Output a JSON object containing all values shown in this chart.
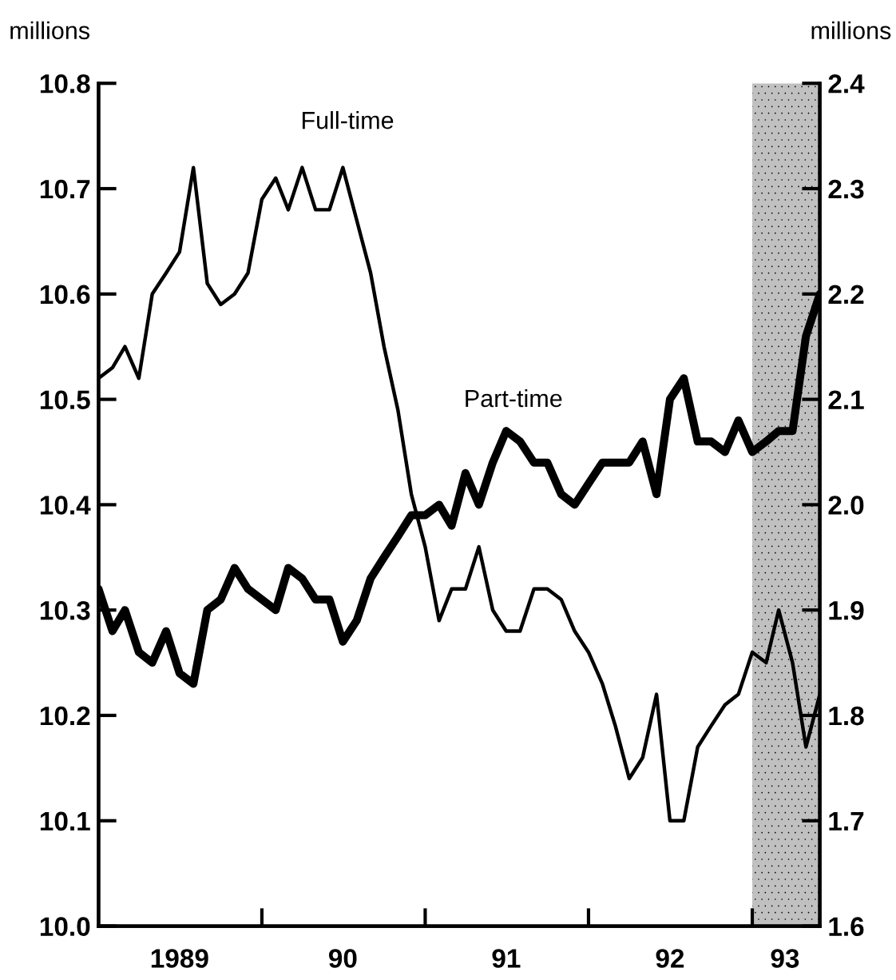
{
  "chart_data": {
    "type": "line",
    "ylabel": "millions",
    "y2label": "millions",
    "xlim": [
      "1989-01",
      "1993-06"
    ],
    "xticks": [
      {
        "value": "1990-01",
        "label": null
      },
      {
        "value": "1991-01",
        "label": null
      },
      {
        "value": "1992-01",
        "label": null
      },
      {
        "value": "1993-01",
        "label": null
      },
      {
        "value": "1989-07",
        "label": "1989"
      },
      {
        "value": "1990-07",
        "label": "90"
      },
      {
        "value": "1991-07",
        "label": "91"
      },
      {
        "value": "1992-07",
        "label": "92"
      },
      {
        "value": "1993-03-15",
        "label": "93"
      }
    ],
    "ylim": [
      10.0,
      10.8
    ],
    "yticks": [
      {
        "value": 10,
        "label": "10.0"
      },
      10.1,
      10.2,
      10.3,
      10.4,
      10.5,
      10.6,
      10.7,
      10.8
    ],
    "y2lim": [
      1.6,
      2.4
    ],
    "y2ticks": [
      1.6,
      1.7,
      1.8,
      1.9,
      {
        "value": 2,
        "label": "2.0"
      },
      2.1,
      2.2,
      2.3,
      2.4
    ],
    "grid": false,
    "legend": false,
    "marker": "none",
    "line_style": "solid",
    "bands": [
      {
        "axis": "x",
        "from": "1993-01",
        "to": "1993-06",
        "color": "#c0c0c0"
      }
    ],
    "annotations": [
      "Full-time",
      "Part-time"
    ],
    "x": [
      "1989-01",
      "1989-02",
      "1989-03",
      "1989-04",
      "1989-05",
      "1989-06",
      "1989-07",
      "1989-08",
      "1989-09",
      "1989-10",
      "1989-11",
      "1989-12",
      "1990-01",
      "1990-02",
      "1990-03",
      "1990-04",
      "1990-05",
      "1990-06",
      "1990-07",
      "1990-08",
      "1990-09",
      "1990-10",
      "1990-11",
      "1990-12",
      "1991-01",
      "1991-02",
      "1991-03",
      "1991-04",
      "1991-05",
      "1991-06",
      "1991-07",
      "1991-08",
      "1991-09",
      "1991-10",
      "1991-11",
      "1991-12",
      "1992-01",
      "1992-02",
      "1992-03",
      "1992-04",
      "1992-05",
      "1992-06",
      "1992-07",
      "1992-08",
      "1992-09",
      "1992-10",
      "1992-11",
      "1992-12",
      "1993-01",
      "1993-02",
      "1993-03",
      "1993-04",
      "1993-05",
      "1993-06"
    ],
    "series": [
      {
        "color": "#000000",
        "values": [
          10.52,
          10.53,
          10.55,
          10.52,
          10.6,
          10.62,
          10.64,
          10.72,
          10.61,
          10.59,
          10.6,
          10.62,
          10.69,
          10.71,
          10.68,
          10.72,
          10.68,
          10.68,
          10.72,
          10.67,
          10.62,
          10.55,
          10.49,
          10.41,
          10.36,
          10.29,
          10.32,
          10.32,
          10.36,
          10.3,
          10.28,
          10.28,
          10.32,
          10.32,
          10.31,
          10.28,
          10.26,
          10.23,
          10.19,
          10.14,
          10.16,
          10.22,
          10.1,
          10.1,
          10.17,
          10.19,
          10.21,
          10.22,
          10.26,
          10.25,
          10.3,
          10.25,
          10.17,
          10.22
        ]
      },
      {
        "color": "#000000",
        "axis": "y2",
        "values": [
          1.92,
          1.88,
          1.9,
          1.86,
          1.85,
          1.88,
          1.84,
          1.83,
          1.9,
          1.91,
          1.94,
          1.92,
          1.91,
          1.9,
          1.94,
          1.93,
          1.91,
          1.91,
          1.87,
          1.89,
          1.93,
          1.95,
          1.97,
          1.99,
          1.99,
          2.0,
          1.98,
          2.03,
          2.0,
          2.04,
          2.07,
          2.06,
          2.04,
          2.04,
          2.01,
          2.0,
          2.02,
          2.04,
          2.04,
          2.04,
          2.06,
          2.01,
          2.1,
          2.12,
          2.06,
          2.06,
          2.05,
          2.08,
          2.05,
          2.06,
          2.07,
          2.07,
          2.16,
          2.2
        ]
      }
    ]
  }
}
